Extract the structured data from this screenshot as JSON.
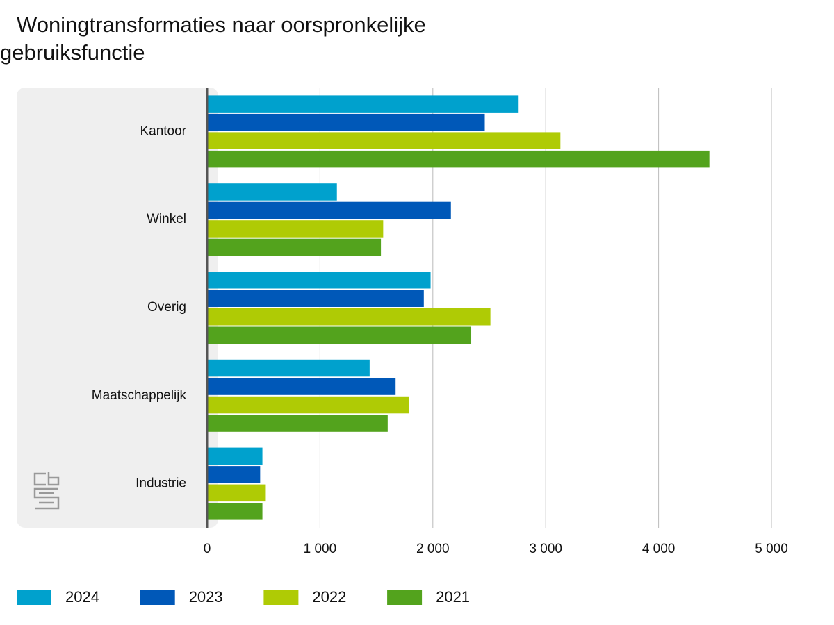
{
  "chart_data": {
    "type": "hbar",
    "title": "Woningtransformaties naar oorspronkelijke gebruiksfunctie",
    "categories": [
      "Kantoor",
      "Winkel",
      "Overig",
      "Maatschappelijk",
      "Industrie"
    ],
    "series": [
      {
        "name": "2024",
        "color": "#00a1cd",
        "values": [
          2760,
          1150,
          1980,
          1440,
          490
        ]
      },
      {
        "name": "2023",
        "color": "#0058b8",
        "values": [
          2460,
          2160,
          1920,
          1670,
          470
        ]
      },
      {
        "name": "2022",
        "color": "#afcb05",
        "values": [
          3130,
          1560,
          2510,
          1790,
          520
        ]
      },
      {
        "name": "2021",
        "color": "#53a31d",
        "values": [
          4450,
          1540,
          2340,
          1600,
          490
        ]
      }
    ],
    "xlim": [
      0,
      5000
    ],
    "xticks": [
      0,
      {
        "value": 1000,
        "label": "1 000"
      },
      {
        "value": 2000,
        "label": "2 000"
      },
      {
        "value": 3000,
        "label": "3 000"
      },
      {
        "value": 4000,
        "label": "4 000"
      },
      {
        "value": 5000,
        "label": "5 000"
      }
    ],
    "grid": true
  }
}
